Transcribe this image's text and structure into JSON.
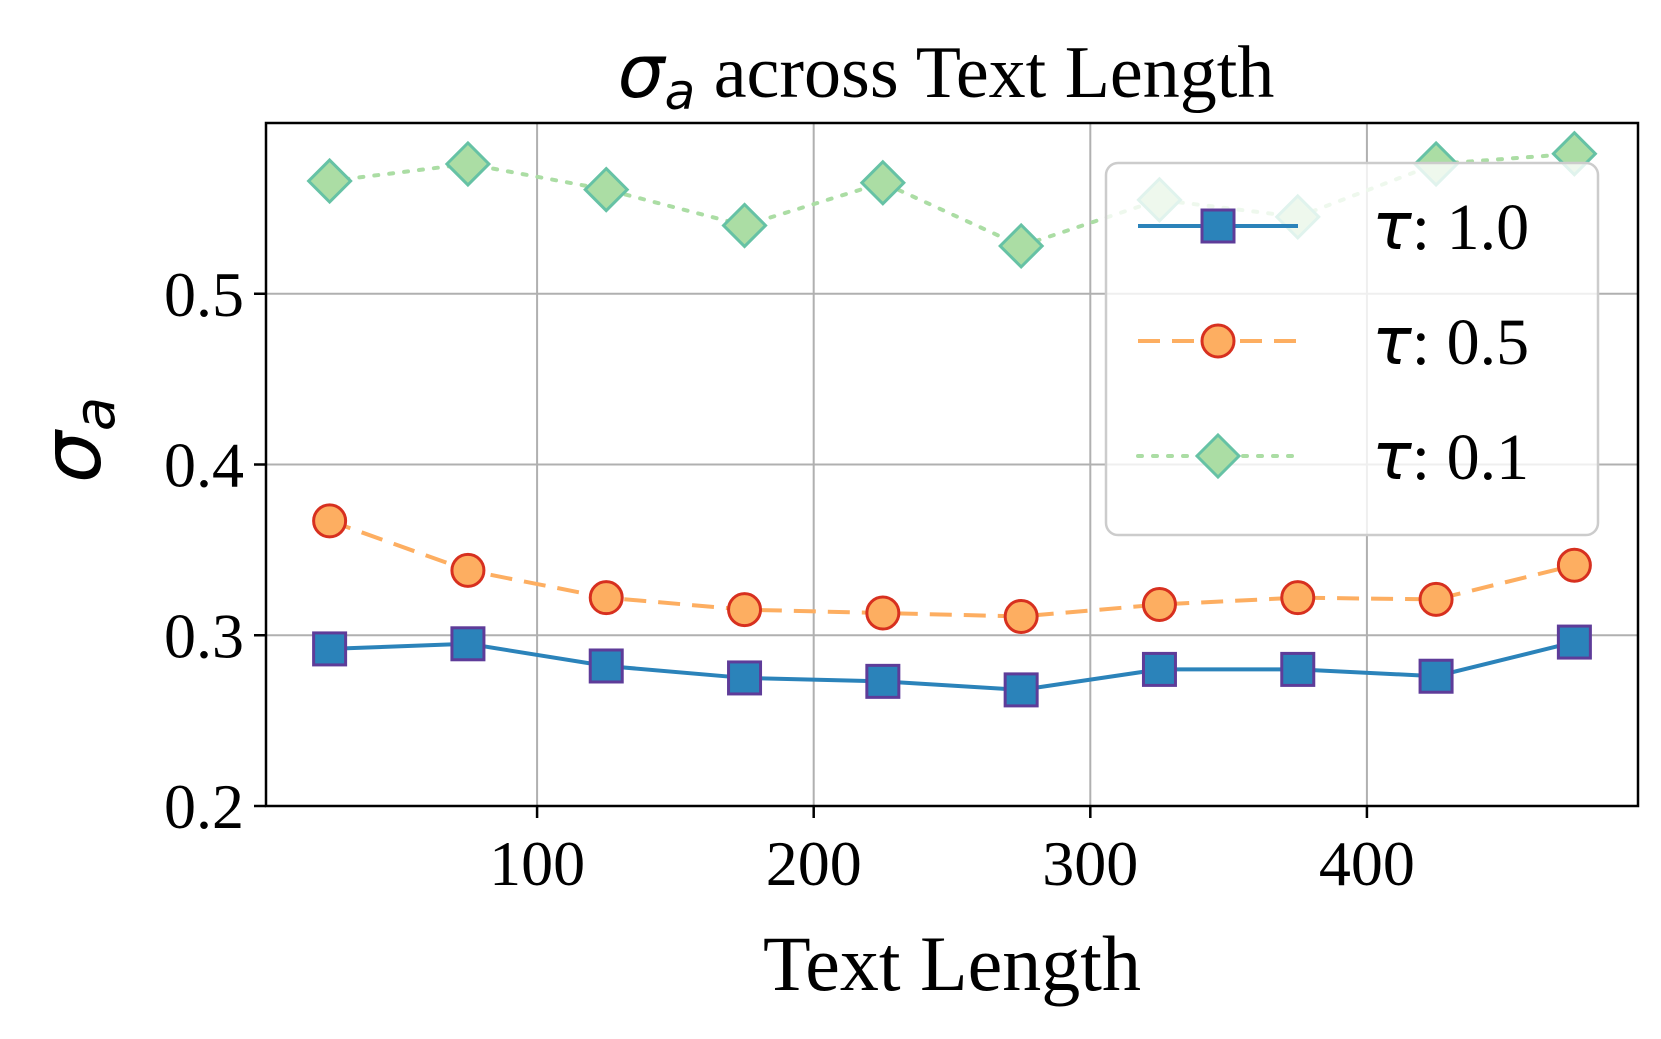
{
  "chart_data": {
    "type": "line",
    "title_symbol": "σ",
    "title_subscript": "a",
    "title_rest": " across Text Length",
    "xlabel": "Text Length",
    "ylabel_symbol": "σ",
    "ylabel_subscript": "a",
    "xlim": [
      2,
      498
    ],
    "ylim": [
      0.2,
      0.6
    ],
    "grid": true,
    "legend_position": "upper-right",
    "x_ticks": [
      100,
      200,
      300,
      400
    ],
    "x_tick_labels": [
      "100",
      "200",
      "300",
      "400"
    ],
    "y_ticks": [
      0.2,
      0.3,
      0.4,
      0.5
    ],
    "y_tick_labels": [
      "0.2",
      "0.3",
      "0.4",
      "0.5"
    ],
    "x": [
      25,
      75,
      125,
      175,
      225,
      275,
      325,
      375,
      425,
      475
    ],
    "series": [
      {
        "name": "τ: 1.0",
        "legend_symbol": "τ",
        "legend_value": ": 1.0",
        "values": [
          0.292,
          0.295,
          0.282,
          0.275,
          0.273,
          0.268,
          0.28,
          0.28,
          0.276,
          0.296
        ],
        "color": "#2b83ba",
        "marker": "square",
        "marker_fill": "#2b83ba",
        "marker_edge": "#5e3c99",
        "dash": "solid"
      },
      {
        "name": "τ: 0.5",
        "legend_symbol": "τ",
        "legend_value": ": 0.5",
        "values": [
          0.367,
          0.338,
          0.322,
          0.315,
          0.313,
          0.311,
          0.318,
          0.322,
          0.321,
          0.341
        ],
        "color": "#fdae61",
        "marker": "circle",
        "marker_fill": "#fdae61",
        "marker_edge": "#d7301f",
        "dash": "dashed"
      },
      {
        "name": "τ: 0.1",
        "legend_symbol": "τ",
        "legend_value": ": 0.1",
        "values": [
          0.566,
          0.576,
          0.561,
          0.54,
          0.565,
          0.528,
          0.555,
          0.545,
          0.576,
          0.582
        ],
        "color": "#abdda4",
        "marker": "diamond",
        "marker_fill": "#abdda4",
        "marker_edge": "#66c2a5",
        "dash": "dotted"
      }
    ]
  }
}
